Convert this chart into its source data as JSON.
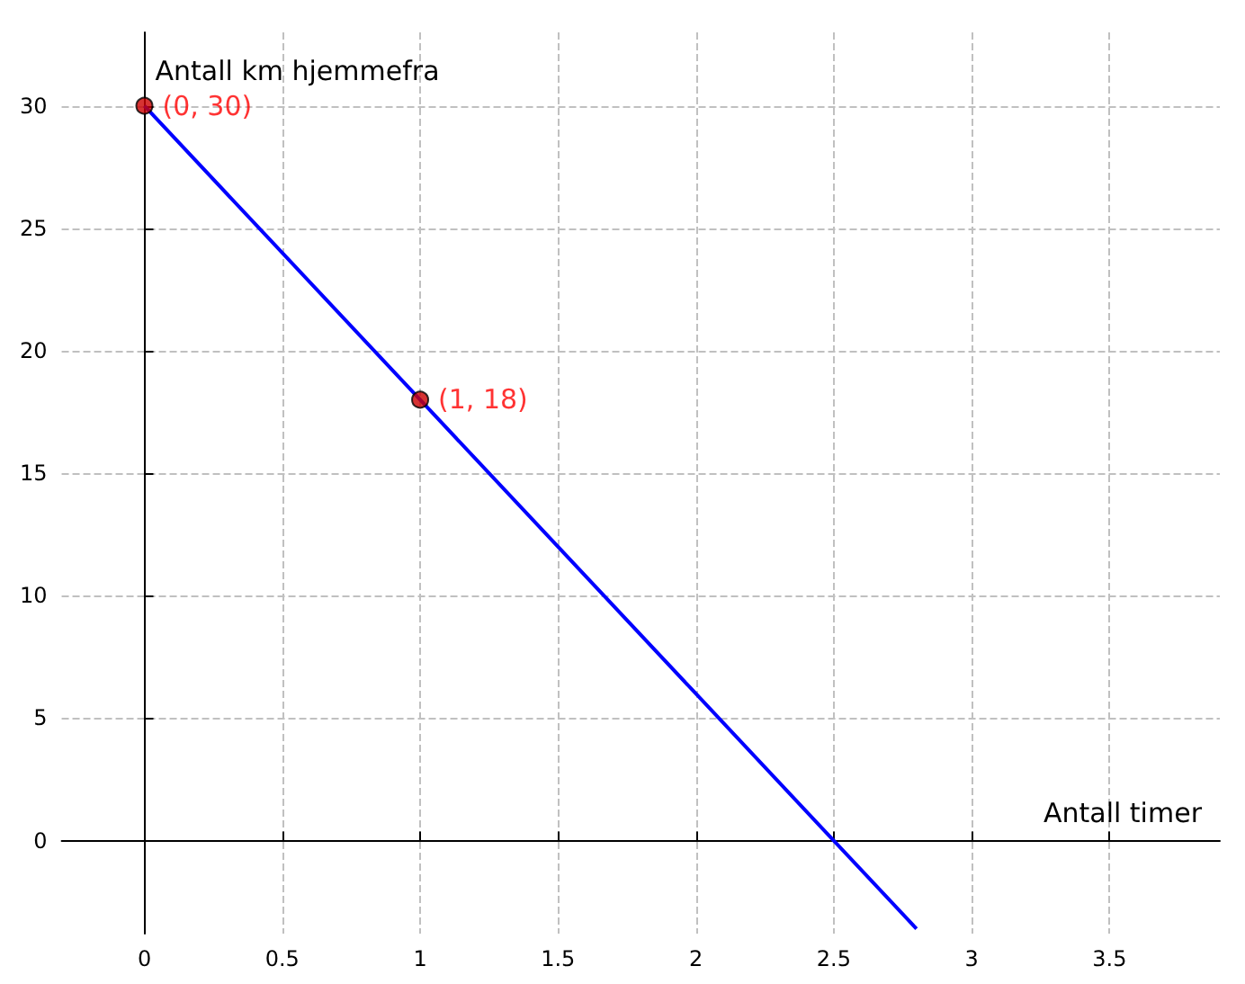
{
  "chart_data": {
    "type": "line",
    "xlabel": "Antall timer",
    "ylabel": "Antall km hjemmefra",
    "xlim": [
      -0.3,
      3.9
    ],
    "ylim": [
      -3.8,
      33
    ],
    "xticks": [
      0,
      0.5,
      1,
      1.5,
      2,
      2.5,
      3,
      3.5
    ],
    "yticks": [
      0,
      5,
      10,
      15,
      20,
      25,
      30
    ],
    "grid": true,
    "series": [
      {
        "color": "#0000ff",
        "x": [
          0,
          1,
          2.5,
          2.8
        ],
        "values": [
          30,
          18,
          0,
          -3.6
        ],
        "marker": "none"
      },
      {
        "type": "scatter",
        "color": "#cc0000",
        "x": [
          0,
          1
        ],
        "values": [
          30,
          18
        ],
        "marker": "circle",
        "value_labels": [
          "(0, 30)",
          "(1, 18)"
        ]
      }
    ]
  }
}
